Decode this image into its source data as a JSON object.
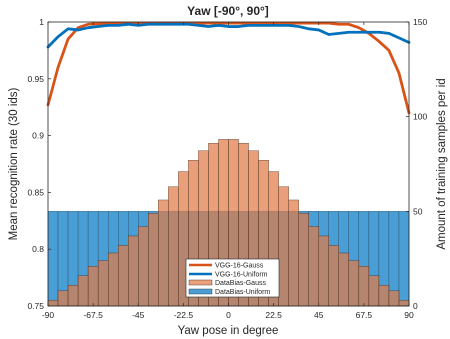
{
  "chart_data": {
    "type": "line+bar",
    "title": "Yaw [-90°, 90°]",
    "xlabel": "Yaw pose in degree",
    "ylabel": "Mean recognition rate (30 ids)",
    "ylabel_right": "Amount of training samples per id",
    "xlim": [
      -90,
      90
    ],
    "ylim": [
      0.75,
      1
    ],
    "ylim_right": [
      0,
      150
    ],
    "x_ticks": [
      "-90",
      "-67.5",
      "-45",
      "-22.5",
      "0",
      "22.5",
      "45",
      "67.5",
      "90"
    ],
    "y_ticks": [
      "0.75",
      "0.8",
      "0.85",
      "0.9",
      "0.95",
      "1"
    ],
    "y_ticks_right": [
      "0",
      "50",
      "100",
      "150"
    ],
    "legend_position": "bottom-center",
    "grid": false,
    "bar_x": [
      -87.5,
      -82.5,
      -77.5,
      -72.5,
      -67.5,
      -62.5,
      -57.5,
      -52.5,
      -47.5,
      -42.5,
      -37.5,
      -32.5,
      -27.5,
      -22.5,
      -17.5,
      -12.5,
      -7.5,
      -2.5,
      2.5,
      7.5,
      12.5,
      17.5,
      22.5,
      27.5,
      32.5,
      37.5,
      42.5,
      47.5,
      52.5,
      57.5,
      62.5,
      67.5,
      72.5,
      77.5,
      82.5,
      87.5
    ],
    "series": [
      {
        "name": "VGG-16-Gauss",
        "kind": "line",
        "color": "#D95319",
        "x": [
          -90,
          -85,
          -80,
          -75,
          -70,
          -65,
          -60,
          -45,
          -30,
          -15,
          0,
          15,
          30,
          45,
          50,
          55,
          60,
          65,
          70,
          75,
          80,
          85,
          90
        ],
        "values": [
          0.927,
          0.96,
          0.985,
          0.995,
          0.998,
          0.9985,
          0.999,
          0.999,
          0.999,
          0.999,
          0.999,
          0.999,
          0.999,
          0.999,
          0.999,
          0.998,
          0.998,
          0.995,
          0.99,
          0.983,
          0.975,
          0.955,
          0.92
        ]
      },
      {
        "name": "VGG-16-Uniform",
        "kind": "line",
        "color": "#0072BD",
        "x": [
          -90,
          -85,
          -80,
          -75,
          -70,
          -65,
          -60,
          -55,
          -50,
          -45,
          -40,
          -35,
          -30,
          -25,
          -20,
          -15,
          -10,
          -5,
          0,
          5,
          10,
          15,
          20,
          25,
          30,
          35,
          40,
          45,
          50,
          55,
          60,
          65,
          70,
          75,
          80,
          85,
          90
        ],
        "values": [
          0.978,
          0.987,
          0.994,
          0.993,
          0.995,
          0.996,
          0.997,
          0.997,
          0.998,
          0.997,
          0.998,
          0.998,
          0.998,
          0.998,
          0.998,
          0.997,
          0.996,
          0.997,
          0.996,
          0.996,
          0.997,
          0.997,
          0.997,
          0.997,
          0.997,
          0.996,
          0.994,
          0.993,
          0.989,
          0.99,
          0.991,
          0.991,
          0.991,
          0.991,
          0.99,
          0.986,
          0.982
        ]
      },
      {
        "name": "DataBias-Gauss",
        "kind": "bar",
        "color": "#EDA07A",
        "values": [
          3,
          8,
          11,
          16,
          21,
          24,
          28,
          32,
          37,
          42,
          49,
          56,
          63,
          71,
          77,
          82,
          86,
          88,
          88,
          86,
          82,
          77,
          71,
          63,
          56,
          49,
          42,
          37,
          32,
          28,
          24,
          21,
          16,
          11,
          8,
          3
        ]
      },
      {
        "name": "DataBias-Uniform",
        "kind": "bar",
        "color": "#4A9ED6",
        "values": [
          50,
          50,
          50,
          50,
          50,
          50,
          50,
          50,
          50,
          50,
          50,
          50,
          50,
          50,
          50,
          50,
          50,
          50,
          50,
          50,
          50,
          50,
          50,
          50,
          50,
          50,
          50,
          50,
          50,
          50,
          50,
          50,
          50,
          50,
          50,
          50
        ]
      }
    ]
  }
}
